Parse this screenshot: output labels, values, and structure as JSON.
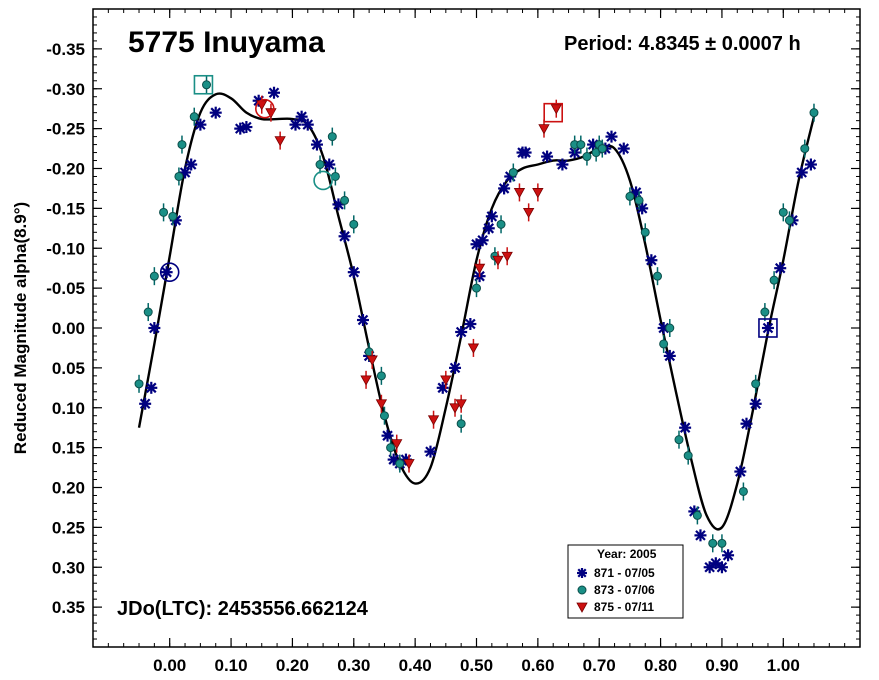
{
  "chart_data": {
    "type": "scatter",
    "title": "5775 Inuyama",
    "period_text": "Period: 4.8345 ± 0.0007 h",
    "jd_text": "JDo(LTC): 2453556.662124",
    "xlabel": "",
    "ylabel": "Reduced Magnitude alpha(8.9°)",
    "xlim": [
      -0.125,
      1.125
    ],
    "ylim": [
      -0.4,
      0.4
    ],
    "y_inverted": true,
    "x_ticks": [
      "0.00",
      "0.10",
      "0.20",
      "0.30",
      "0.40",
      "0.50",
      "0.60",
      "0.70",
      "0.80",
      "0.90",
      "1.00"
    ],
    "x_tick_values": [
      0,
      0.1,
      0.2,
      0.3,
      0.4,
      0.5,
      0.6,
      0.7,
      0.8,
      0.9,
      1.0
    ],
    "y_ticks": [
      "-0.35",
      "-0.30",
      "-0.25",
      "-0.20",
      "-0.15",
      "-0.10",
      "-0.05",
      "0.00",
      "0.05",
      "0.10",
      "0.15",
      "0.20",
      "0.25",
      "0.30",
      "0.35"
    ],
    "y_tick_values": [
      -0.35,
      -0.3,
      -0.25,
      -0.2,
      -0.15,
      -0.1,
      -0.05,
      0,
      0.05,
      0.1,
      0.15,
      0.2,
      0.25,
      0.3,
      0.35
    ],
    "legend": {
      "title": "Year: 2005",
      "placement": "bottom-right",
      "entries": [
        "871 - 07/05",
        "873 - 07/06",
        "875 - 07/11"
      ]
    },
    "series": [
      {
        "name": "871 - 07/05",
        "marker": "asterisk",
        "color": "#000080",
        "points": [
          [
            -0.04,
            0.095
          ],
          [
            -0.03,
            0.075
          ],
          [
            -0.025,
            0.0
          ],
          [
            -0.005,
            -0.07
          ],
          [
            0.01,
            -0.135
          ],
          [
            0.025,
            -0.195
          ],
          [
            0.035,
            -0.205
          ],
          [
            0.05,
            -0.255
          ],
          [
            0.075,
            -0.27
          ],
          [
            0.115,
            -0.25
          ],
          [
            0.125,
            -0.252
          ],
          [
            0.145,
            -0.285
          ],
          [
            0.17,
            -0.295
          ],
          [
            0.205,
            -0.255
          ],
          [
            0.215,
            -0.265
          ],
          [
            0.225,
            -0.255
          ],
          [
            0.24,
            -0.23
          ],
          [
            0.26,
            -0.205
          ],
          [
            0.275,
            -0.155
          ],
          [
            0.285,
            -0.115
          ],
          [
            0.3,
            -0.07
          ],
          [
            0.315,
            -0.01
          ],
          [
            0.325,
            0.035
          ],
          [
            0.355,
            0.135
          ],
          [
            0.365,
            0.165
          ],
          [
            0.375,
            0.17
          ],
          [
            0.385,
            0.165
          ],
          [
            0.425,
            0.155
          ],
          [
            0.445,
            0.075
          ],
          [
            0.465,
            0.05
          ],
          [
            0.475,
            0.005
          ],
          [
            0.49,
            -0.005
          ],
          [
            0.505,
            -0.065
          ],
          [
            0.5,
            -0.105
          ],
          [
            0.51,
            -0.11
          ],
          [
            0.52,
            -0.125
          ],
          [
            0.525,
            -0.14
          ],
          [
            0.545,
            -0.175
          ],
          [
            0.555,
            -0.19
          ],
          [
            0.575,
            -0.22
          ],
          [
            0.58,
            -0.22
          ],
          [
            0.615,
            -0.215
          ],
          [
            0.64,
            -0.205
          ],
          [
            0.66,
            -0.22
          ],
          [
            0.69,
            -0.23
          ],
          [
            0.71,
            -0.225
          ],
          [
            0.72,
            -0.24
          ],
          [
            0.74,
            -0.225
          ],
          [
            0.76,
            -0.17
          ],
          [
            0.77,
            -0.15
          ],
          [
            0.785,
            -0.085
          ],
          [
            0.805,
            -0.0
          ],
          [
            0.815,
            0.035
          ],
          [
            0.84,
            0.125
          ],
          [
            0.855,
            0.23
          ],
          [
            0.865,
            0.26
          ],
          [
            0.88,
            0.3
          ],
          [
            0.89,
            0.295
          ],
          [
            0.9,
            0.3
          ],
          [
            0.91,
            0.285
          ],
          [
            0.93,
            0.18
          ],
          [
            0.94,
            0.12
          ],
          [
            0.955,
            0.095
          ],
          [
            0.975,
            -0.0
          ],
          [
            0.995,
            -0.075
          ],
          [
            1.015,
            -0.135
          ],
          [
            1.03,
            -0.195
          ],
          [
            1.045,
            -0.205
          ]
        ]
      },
      {
        "name": "873 - 07/06",
        "marker": "circle",
        "color": "#006666",
        "points": [
          [
            -0.05,
            0.07
          ],
          [
            -0.035,
            -0.02
          ],
          [
            -0.025,
            -0.065
          ],
          [
            -0.01,
            -0.145
          ],
          [
            0.005,
            -0.14
          ],
          [
            0.015,
            -0.19
          ],
          [
            0.02,
            -0.23
          ],
          [
            0.04,
            -0.265
          ],
          [
            0.06,
            -0.305
          ],
          [
            0.245,
            -0.205
          ],
          [
            0.265,
            -0.24
          ],
          [
            0.27,
            -0.19
          ],
          [
            0.285,
            -0.16
          ],
          [
            0.3,
            -0.13
          ],
          [
            0.325,
            0.03
          ],
          [
            0.345,
            0.06
          ],
          [
            0.35,
            0.11
          ],
          [
            0.36,
            0.15
          ],
          [
            0.375,
            0.17
          ],
          [
            0.475,
            0.12
          ],
          [
            0.5,
            -0.05
          ],
          [
            0.53,
            -0.09
          ],
          [
            0.54,
            -0.13
          ],
          [
            0.56,
            -0.195
          ],
          [
            0.66,
            -0.23
          ],
          [
            0.67,
            -0.23
          ],
          [
            0.68,
            -0.215
          ],
          [
            0.695,
            -0.22
          ],
          [
            0.7,
            -0.23
          ],
          [
            0.705,
            -0.225
          ],
          [
            0.75,
            -0.165
          ],
          [
            0.765,
            -0.16
          ],
          [
            0.775,
            -0.12
          ],
          [
            0.795,
            -0.065
          ],
          [
            0.805,
            0.02
          ],
          [
            0.815,
            0.0
          ],
          [
            0.83,
            0.14
          ],
          [
            0.845,
            0.16
          ],
          [
            0.86,
            0.235
          ],
          [
            0.885,
            0.27
          ],
          [
            0.9,
            0.27
          ],
          [
            0.935,
            0.205
          ],
          [
            0.955,
            0.07
          ],
          [
            0.97,
            -0.02
          ],
          [
            0.985,
            -0.06
          ],
          [
            1.0,
            -0.145
          ],
          [
            1.01,
            -0.135
          ],
          [
            1.035,
            -0.225
          ],
          [
            1.05,
            -0.27
          ]
        ]
      },
      {
        "name": "875 - 07/11",
        "marker": "triangle",
        "color": "#cc1111",
        "points": [
          [
            0.15,
            -0.28
          ],
          [
            0.165,
            -0.27
          ],
          [
            0.18,
            -0.235
          ],
          [
            0.33,
            0.04
          ],
          [
            0.32,
            0.065
          ],
          [
            0.345,
            0.095
          ],
          [
            0.37,
            0.145
          ],
          [
            0.39,
            0.17
          ],
          [
            0.43,
            0.115
          ],
          [
            0.45,
            0.065
          ],
          [
            0.465,
            0.1
          ],
          [
            0.475,
            0.095
          ],
          [
            0.495,
            0.025
          ],
          [
            0.505,
            -0.075
          ],
          [
            0.535,
            -0.085
          ],
          [
            0.55,
            -0.09
          ],
          [
            0.57,
            -0.17
          ],
          [
            0.585,
            -0.145
          ],
          [
            0.6,
            -0.17
          ],
          [
            0.61,
            -0.25
          ],
          [
            0.63,
            -0.275
          ]
        ]
      }
    ],
    "highlighted_points": [
      {
        "series": "871 - 07/05",
        "shape": "circle",
        "x": 0.0,
        "y": -0.07
      },
      {
        "series": "871 - 07/05",
        "shape": "square",
        "x": 0.975,
        "y": 0.0
      },
      {
        "series": "873 - 07/06",
        "shape": "square",
        "x": 0.055,
        "y": -0.305
      },
      {
        "series": "873 - 07/06",
        "shape": "circle",
        "x": 0.25,
        "y": -0.185
      },
      {
        "series": "875 - 07/11",
        "shape": "circle",
        "x": 0.155,
        "y": -0.275
      },
      {
        "series": "875 - 07/11",
        "shape": "square",
        "x": 0.625,
        "y": -0.27
      }
    ],
    "fit_curve": {
      "color": "#000000",
      "points": [
        [
          -0.05,
          0.125
        ],
        [
          -0.025,
          0.02
        ],
        [
          0.0,
          -0.09
        ],
        [
          0.025,
          -0.2
        ],
        [
          0.05,
          -0.27
        ],
        [
          0.075,
          -0.293
        ],
        [
          0.1,
          -0.288
        ],
        [
          0.125,
          -0.27
        ],
        [
          0.15,
          -0.262
        ],
        [
          0.175,
          -0.262
        ],
        [
          0.2,
          -0.262
        ],
        [
          0.225,
          -0.255
        ],
        [
          0.25,
          -0.215
        ],
        [
          0.275,
          -0.14
        ],
        [
          0.3,
          -0.065
        ],
        [
          0.325,
          0.025
        ],
        [
          0.35,
          0.11
        ],
        [
          0.375,
          0.17
        ],
        [
          0.4,
          0.195
        ],
        [
          0.425,
          0.175
        ],
        [
          0.45,
          0.1
        ],
        [
          0.475,
          0.01
        ],
        [
          0.5,
          -0.085
        ],
        [
          0.525,
          -0.15
        ],
        [
          0.55,
          -0.185
        ],
        [
          0.575,
          -0.2
        ],
        [
          0.6,
          -0.205
        ],
        [
          0.625,
          -0.21
        ],
        [
          0.65,
          -0.21
        ],
        [
          0.675,
          -0.215
        ],
        [
          0.7,
          -0.225
        ],
        [
          0.725,
          -0.225
        ],
        [
          0.75,
          -0.185
        ],
        [
          0.775,
          -0.105
        ],
        [
          0.8,
          -0.01
        ],
        [
          0.825,
          0.08
        ],
        [
          0.85,
          0.165
        ],
        [
          0.875,
          0.235
        ],
        [
          0.9,
          0.25
        ],
        [
          0.925,
          0.195
        ],
        [
          0.95,
          0.105
        ],
        [
          0.975,
          0.005
        ],
        [
          1.0,
          -0.085
        ],
        [
          1.025,
          -0.185
        ],
        [
          1.05,
          -0.265
        ]
      ]
    }
  }
}
